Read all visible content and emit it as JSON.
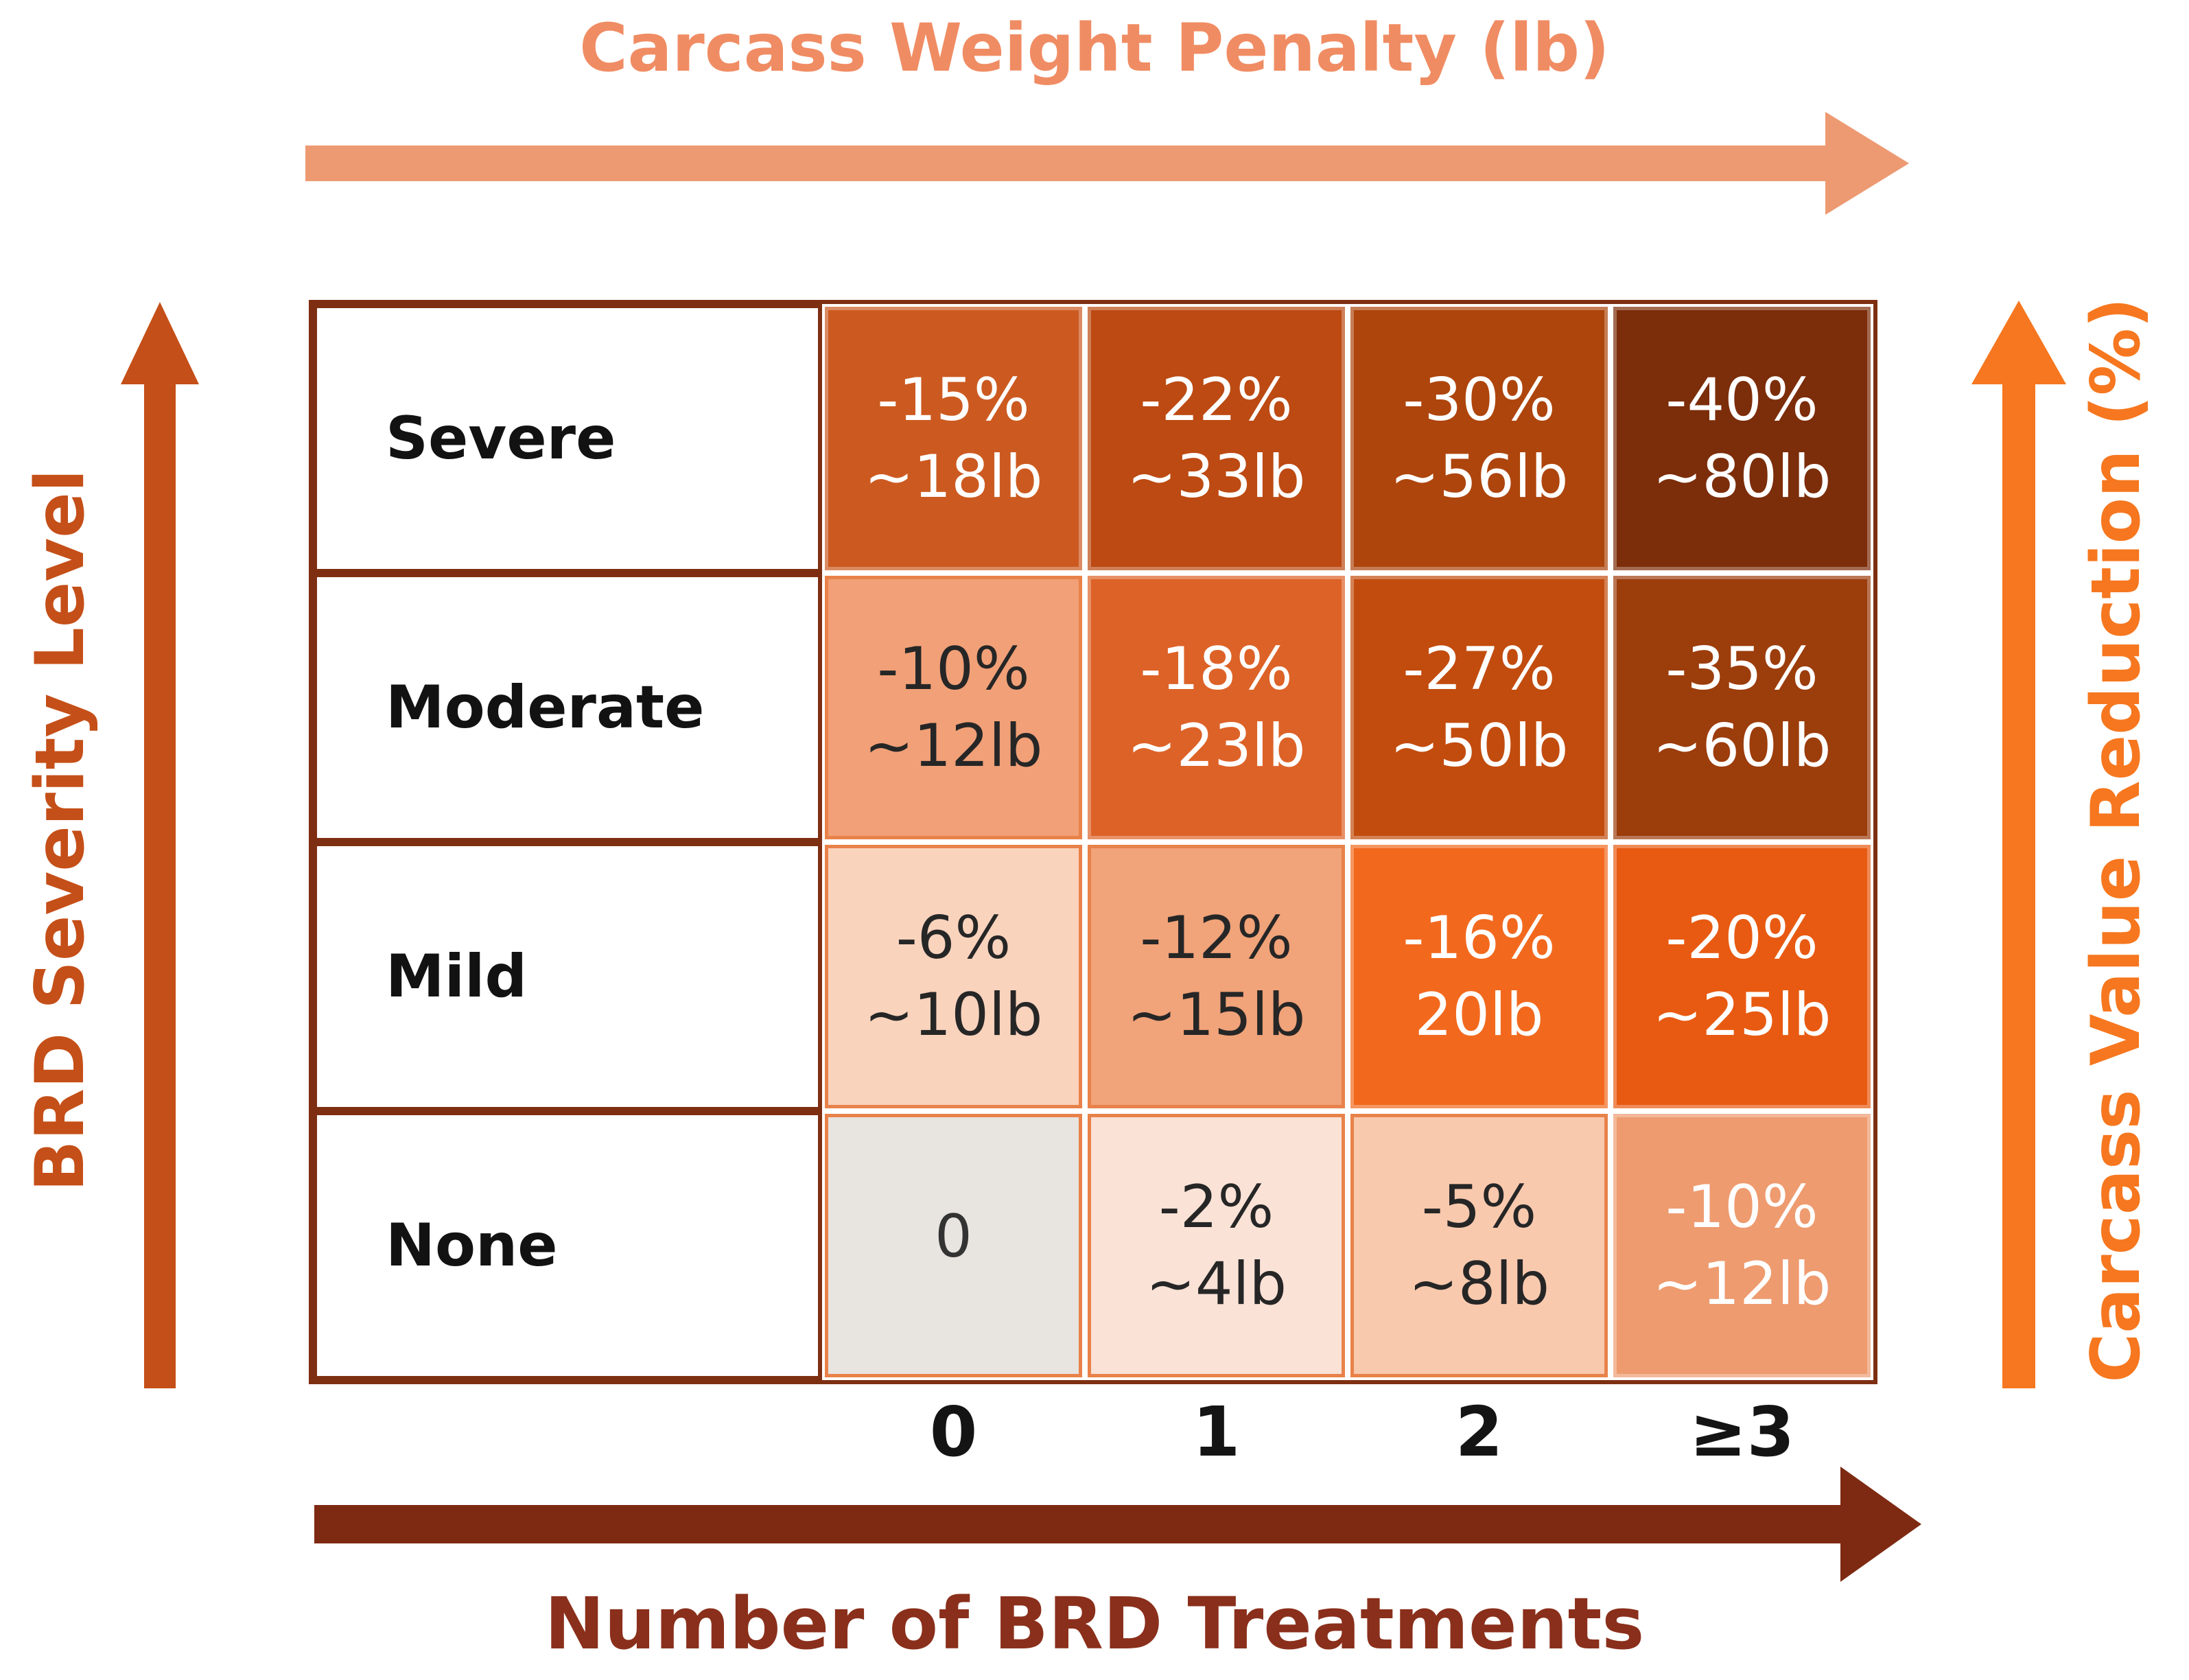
{
  "axes": {
    "top": {
      "label": "Carcass Weight Penalty (lb)"
    },
    "bottom": {
      "label": "Number of BRD Treatments"
    },
    "left": {
      "label": "BRD Severity Level"
    },
    "right": {
      "label": "Carcass Value Reduction (%)"
    }
  },
  "matrix": {
    "column_headers": [
      "0",
      "1",
      "2",
      "≥3"
    ],
    "rows": [
      {
        "label": "Severe",
        "cells": [
          {
            "pct": "-15%",
            "lb": "~18lb"
          },
          {
            "pct": "-22%",
            "lb": "~33lb"
          },
          {
            "pct": "-30%",
            "lb": "~56lb"
          },
          {
            "pct": "-40%",
            "lb": "~80lb"
          }
        ]
      },
      {
        "label": "Moderate",
        "cells": [
          {
            "pct": "-10%",
            "lb": "~12lb"
          },
          {
            "pct": "-18%",
            "lb": "~23lb"
          },
          {
            "pct": "-27%",
            "lb": "~50lb"
          },
          {
            "pct": "-35%",
            "lb": "~60lb"
          }
        ]
      },
      {
        "label": "Mild",
        "cells": [
          {
            "pct": "-6%",
            "lb": "~10lb"
          },
          {
            "pct": "-12%",
            "lb": "~15lb"
          },
          {
            "pct": "-16%",
            "lb": "20lb"
          },
          {
            "pct": "-20%",
            "lb": "~25lb"
          }
        ]
      },
      {
        "label": "None",
        "cells": [
          {
            "pct": "0",
            "lb": ""
          },
          {
            "pct": "-2%",
            "lb": "~4lb"
          },
          {
            "pct": "-5%",
            "lb": "~8lb"
          },
          {
            "pct": "-10%",
            "lb": "~12lb"
          }
        ]
      }
    ]
  },
  "colors": {
    "top_title": "#F08C63",
    "top_arrow": "#ED9A72",
    "left_accent": "#C54F18",
    "right_accent": "#F6771F",
    "bottom_arrow": "#7E2A12",
    "bottom_title": "#8A2F1B",
    "table_frame": "#7E2F12",
    "cell_fills": [
      [
        "#CC5A20",
        "#BC4A12",
        "#AE450C",
        "#7C2D0A"
      ],
      [
        "#F1A077",
        "#DD6227",
        "#C24C0E",
        "#9C3D0C"
      ],
      [
        "#FAD3BD",
        "#F1A379",
        "#F2691E",
        "#E85A11"
      ],
      [
        "#E8E4E0",
        "#FAE2D6",
        "#F9C9AE",
        "#EE9B6F"
      ]
    ]
  },
  "chart_data": {
    "type": "heatmap",
    "x_categories": [
      "0",
      "1",
      "2",
      "≥3"
    ],
    "x_axis_label": "Number of BRD Treatments",
    "y_categories": [
      "Severe",
      "Moderate",
      "Mild",
      "None"
    ],
    "y_axis_label": "BRD Severity Level",
    "top_axis_label": "Carcass Weight Penalty (lb)",
    "right_axis_label": "Carcass Value Reduction (%)",
    "carcass_value_reduction_pct": [
      [
        -15,
        -22,
        -30,
        -40
      ],
      [
        -10,
        -18,
        -27,
        -35
      ],
      [
        -6,
        -12,
        -16,
        -20
      ],
      [
        0,
        -2,
        -5,
        -10
      ]
    ],
    "carcass_weight_penalty_lb": [
      [
        18,
        33,
        56,
        80
      ],
      [
        12,
        23,
        50,
        60
      ],
      [
        10,
        15,
        20,
        25
      ],
      [
        0,
        4,
        8,
        12
      ]
    ],
    "legend_position": "none",
    "grid": false
  }
}
